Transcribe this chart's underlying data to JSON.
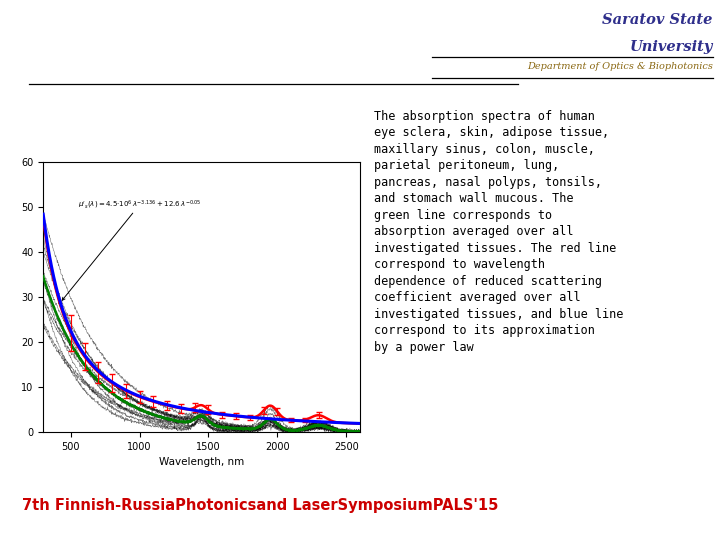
{
  "title1": "Saratov State",
  "title2": "University",
  "title1_color": "#2e2e8b",
  "dept_text": "Department of Optics & Biophotonics",
  "dept_color": "#8b6914",
  "footer_text": "7th Finnish-RussiaPhotonicsand LaserSymposiumPALS'15",
  "footer_color": "#cc0000",
  "description": "The absorption spectra of human\neye sclera, skin, adipose tissue,\nmaxillary sinus, colon, muscle,\nparietal peritoneum, lung,\npancreas, nasal polyps, tonsils,\nand stomach wall mucous. The\ngreen line corresponds to\nabsorption averaged over all\ninvestigated tissues. The red line\ncorrespond to wavelength\ndependence of reduced scattering\ncoefficient averaged over all\ninvestigated tissues, and blue line\ncorrespond to its approximation\nby a power law",
  "desc_color": "#000000",
  "xlabel": "Wavelength, nm",
  "bg_color": "#ffffff",
  "plot_bg": "#ffffff",
  "xlim": [
    300,
    2600
  ],
  "ylim": [
    0,
    60
  ],
  "yticks": [
    0,
    10,
    20,
    30,
    40,
    50,
    60
  ],
  "xticks": [
    500,
    1000,
    1500,
    2000,
    2500
  ]
}
